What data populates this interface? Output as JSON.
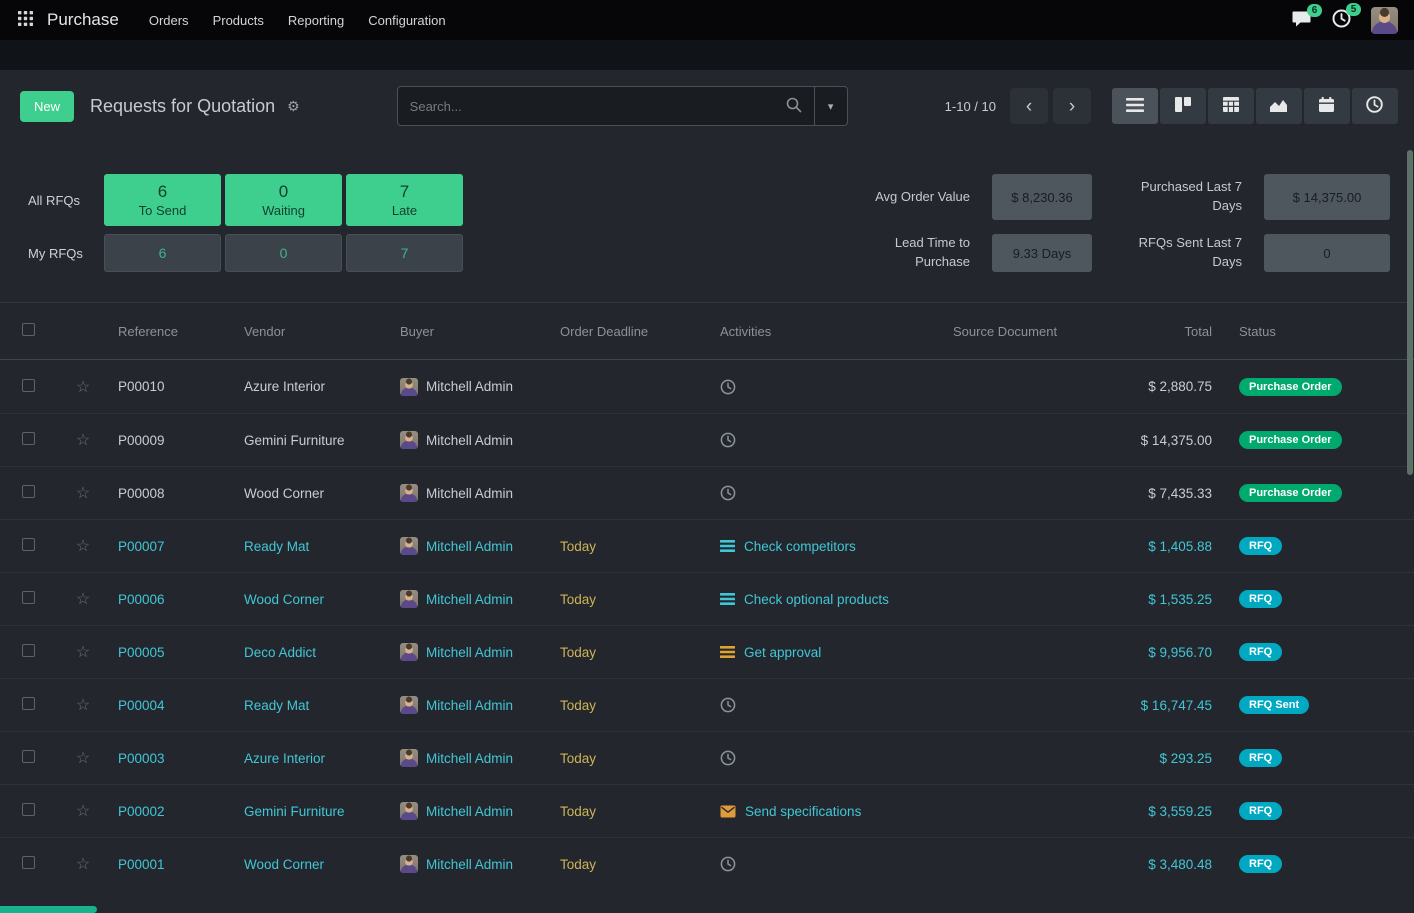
{
  "navbar": {
    "app_name": "Purchase",
    "menus": [
      "Orders",
      "Products",
      "Reporting",
      "Configuration"
    ],
    "messages_badge": "6",
    "activities_badge": "5"
  },
  "control_panel": {
    "new_button": "New",
    "title": "Requests for Quotation",
    "search": {
      "placeholder": "Search..."
    },
    "pager": "1-10 / 10",
    "views": [
      "List",
      "Kanban",
      "Pivot",
      "Graph",
      "Calendar",
      "Activity"
    ]
  },
  "dashboard": {
    "all_label": "All RFQs",
    "my_label": "My RFQs",
    "stats": [
      {
        "all": "6",
        "label": "To Send",
        "my": "6"
      },
      {
        "all": "0",
        "label": "Waiting",
        "my": "0"
      },
      {
        "all": "7",
        "label": "Late",
        "my": "7"
      }
    ],
    "kpis": [
      {
        "label": "Avg Order Value",
        "value": "$ 8,230.36"
      },
      {
        "label": "Purchased Last 7 Days",
        "value": "$ 14,375.00"
      },
      {
        "label": "Lead Time to Purchase",
        "value": "9.33 Days"
      },
      {
        "label": "RFQs Sent Last 7 Days",
        "value": "0"
      }
    ]
  },
  "table": {
    "columns": [
      "Reference",
      "Vendor",
      "Buyer",
      "Order Deadline",
      "Activities",
      "Source Document",
      "Total",
      "Status"
    ],
    "rows": [
      {
        "reference": "P00010",
        "vendor": "Azure Interior",
        "buyer": "Mitchell Admin",
        "deadline": "",
        "activity_icon": "clock",
        "activity_text": "",
        "source": "",
        "total": "$ 2,880.75",
        "status": "Purchase Order",
        "status_type": "success",
        "highlight": false
      },
      {
        "reference": "P00009",
        "vendor": "Gemini Furniture",
        "buyer": "Mitchell Admin",
        "deadline": "",
        "activity_icon": "clock",
        "activity_text": "",
        "source": "",
        "total": "$ 14,375.00",
        "status": "Purchase Order",
        "status_type": "success",
        "highlight": false
      },
      {
        "reference": "P00008",
        "vendor": "Wood Corner",
        "buyer": "Mitchell Admin",
        "deadline": "",
        "activity_icon": "clock",
        "activity_text": "",
        "source": "",
        "total": "$ 7,435.33",
        "status": "Purchase Order",
        "status_type": "success",
        "highlight": false
      },
      {
        "reference": "P00007",
        "vendor": "Ready Mat",
        "buyer": "Mitchell Admin",
        "deadline": "Today",
        "activity_icon": "list-info",
        "activity_text": "Check competitors",
        "source": "",
        "total": "$ 1,405.88",
        "status": "RFQ",
        "status_type": "info",
        "highlight": true
      },
      {
        "reference": "P00006",
        "vendor": "Wood Corner",
        "buyer": "Mitchell Admin",
        "deadline": "Today",
        "activity_icon": "list-info",
        "activity_text": "Check optional products",
        "source": "",
        "total": "$ 1,535.25",
        "status": "RFQ",
        "status_type": "info",
        "highlight": true
      },
      {
        "reference": "P00005",
        "vendor": "Deco Addict",
        "buyer": "Mitchell Admin",
        "deadline": "Today",
        "activity_icon": "list-warning",
        "activity_text": "Get approval",
        "source": "",
        "total": "$ 9,956.70",
        "status": "RFQ",
        "status_type": "info",
        "highlight": true
      },
      {
        "reference": "P00004",
        "vendor": "Ready Mat",
        "buyer": "Mitchell Admin",
        "deadline": "Today",
        "activity_icon": "clock",
        "activity_text": "",
        "source": "",
        "total": "$ 16,747.45",
        "status": "RFQ Sent",
        "status_type": "info",
        "highlight": true
      },
      {
        "reference": "P00003",
        "vendor": "Azure Interior",
        "buyer": "Mitchell Admin",
        "deadline": "Today",
        "activity_icon": "clock",
        "activity_text": "",
        "source": "",
        "total": "$ 293.25",
        "status": "RFQ",
        "status_type": "info",
        "highlight": true
      },
      {
        "reference": "P00002",
        "vendor": "Gemini Furniture",
        "buyer": "Mitchell Admin",
        "deadline": "Today",
        "activity_icon": "mail",
        "activity_text": "Send specifications",
        "source": "",
        "total": "$ 3,559.25",
        "status": "RFQ",
        "status_type": "info",
        "highlight": true
      },
      {
        "reference": "P00001",
        "vendor": "Wood Corner",
        "buyer": "Mitchell Admin",
        "deadline": "Today",
        "activity_icon": "clock",
        "activity_text": "",
        "source": "",
        "total": "$ 3,480.48",
        "status": "RFQ",
        "status_type": "info",
        "highlight": true
      }
    ]
  },
  "colors": {
    "accent_green": "#3ecf8e",
    "badge_success": "#00a96e",
    "badge_info": "#00a9c1",
    "highlight": "#41c6d6",
    "warning": "#cdb457"
  },
  "icons": {
    "gear": "⚙",
    "caret_down": "▾",
    "star": "☆",
    "chevron_left": "‹",
    "chevron_right": "›"
  }
}
